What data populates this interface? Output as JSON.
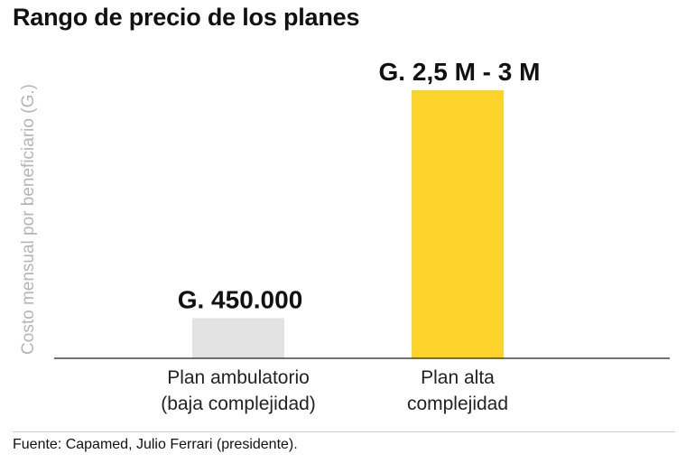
{
  "chart_data": {
    "type": "bar",
    "title": "Rango de precio de los planes",
    "ylabel": "Costo mensual por beneficiario (G.)",
    "xlabel": "",
    "ylim": [
      0,
      3000000
    ],
    "grid": false,
    "categories": [
      [
        "Plan ambulatorio",
        "(baja complejidad)"
      ],
      [
        "Plan alta",
        "complejidad"
      ]
    ],
    "values": [
      450000,
      3000000
    ],
    "data_labels": [
      "G. 450.000",
      "G. 2,5 M - 3 M"
    ],
    "colors": [
      "#e3e3e3",
      "#fcd32a"
    ]
  },
  "source": "Fuente: Capamed, Julio Ferrari (presidente)."
}
